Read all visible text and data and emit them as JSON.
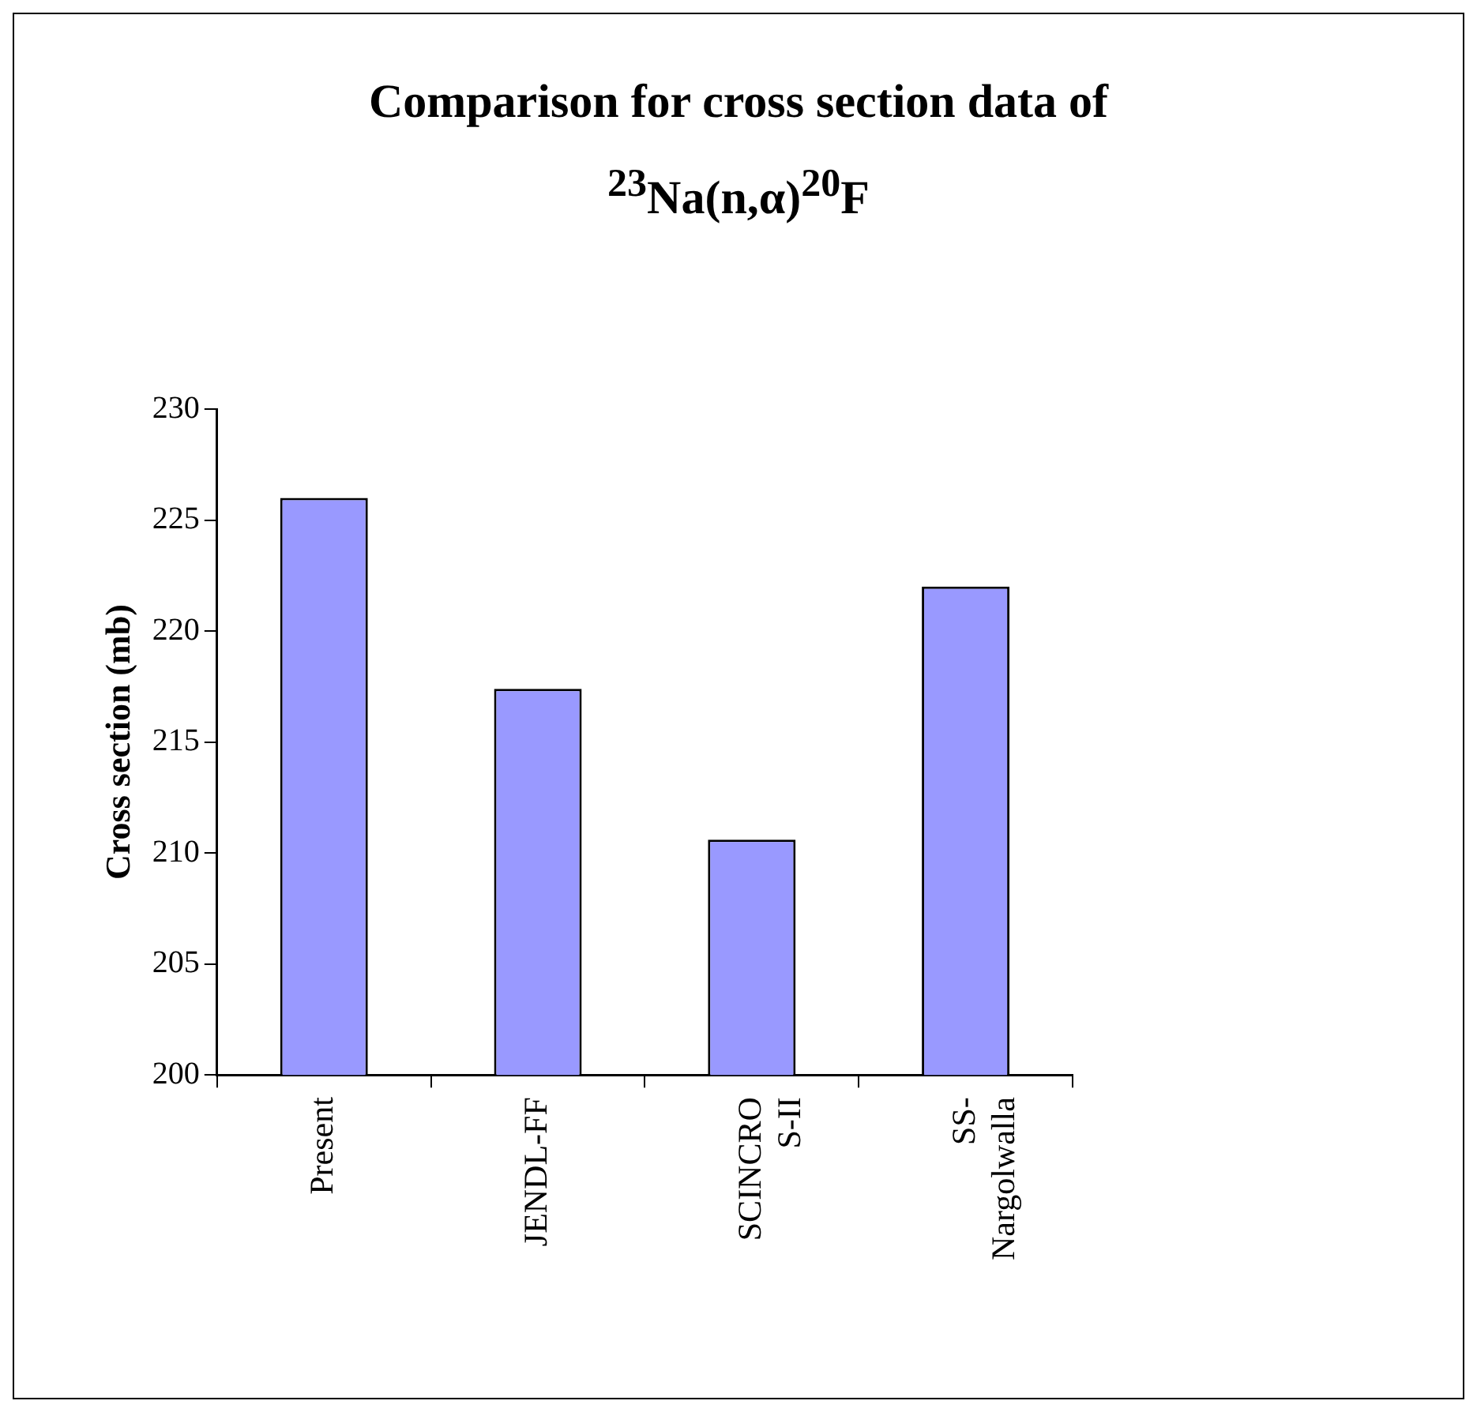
{
  "chart_data": {
    "type": "bar",
    "title": "Comparison for cross section data of $^{23}$Na(n,α)$^{20}$F",
    "ylabel": "Cross section (mb)",
    "categories": [
      "Present",
      "JENDL-FF",
      "SCINCRO S-II",
      "SS- Nargolwalla"
    ],
    "values": [
      226.0,
      217.4,
      210.6,
      222.0
    ],
    "color": "#9999ff",
    "ylim": [
      200,
      230
    ],
    "yticks": [
      200,
      205,
      210,
      215,
      220,
      225,
      230
    ],
    "grid": false
  }
}
